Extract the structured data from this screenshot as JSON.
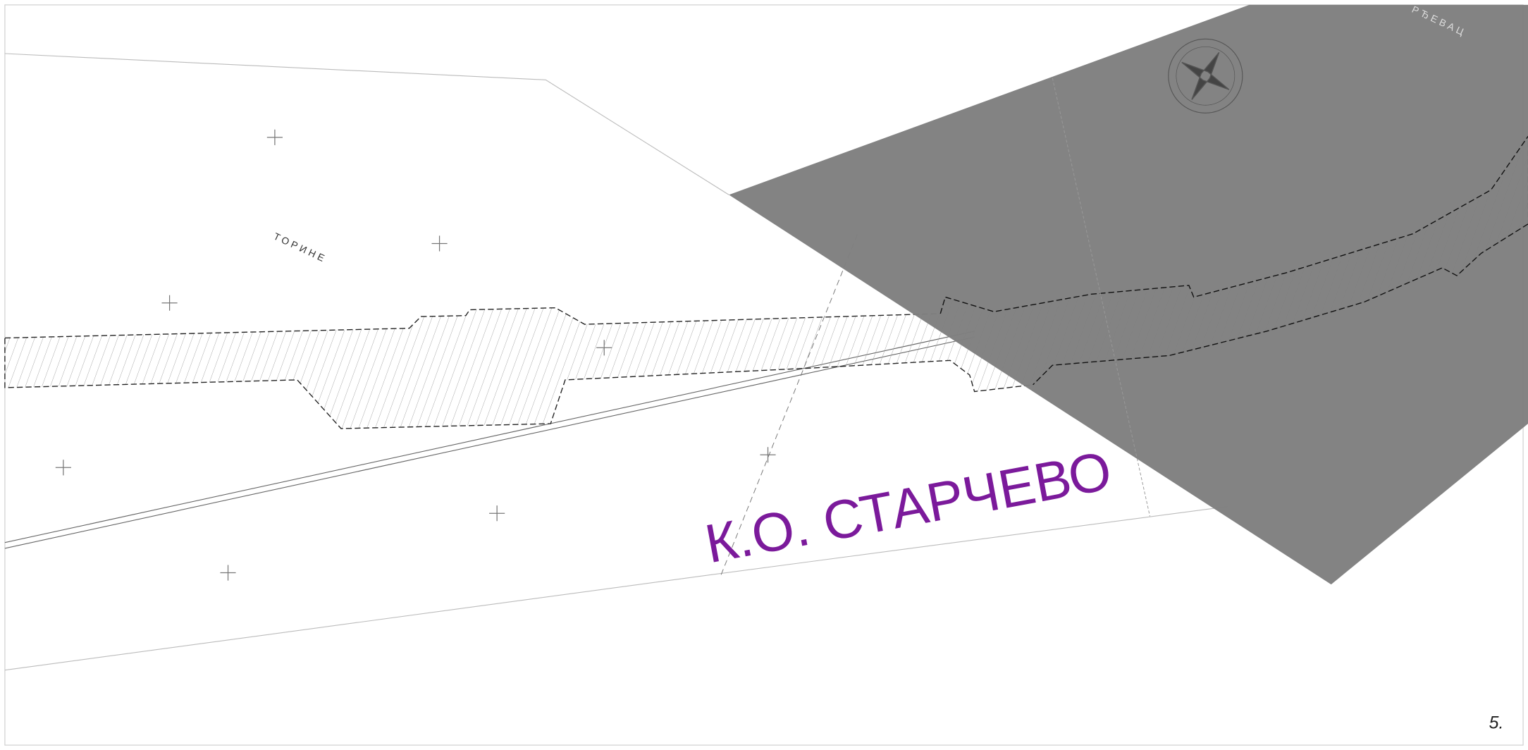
{
  "map": {
    "place_labels": [
      "ТОРИНЕ",
      "РЂЕВАЦ"
    ],
    "municipality_label": "К.О. СТАРЧЕВО"
  },
  "page_number": "5."
}
